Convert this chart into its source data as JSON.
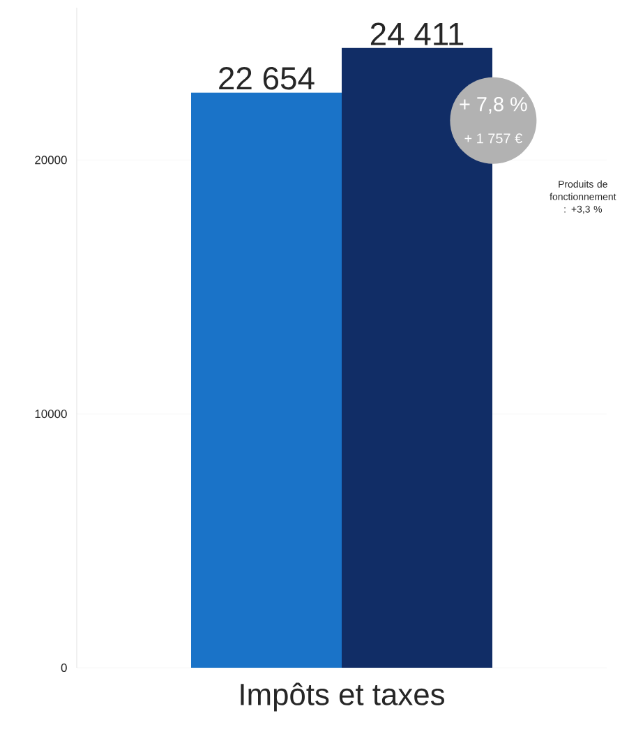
{
  "chart_data": {
    "type": "bar",
    "categories": [
      "Impôts et taxes"
    ],
    "series": [
      {
        "color": "#1a73c8",
        "values": [
          22654
        ],
        "value_labels": [
          "22 654"
        ]
      },
      {
        "color": "#112d66",
        "values": [
          24411
        ],
        "value_labels": [
          "24 411"
        ]
      }
    ],
    "ylim": [
      0,
      26000
    ],
    "yticks": [
      0,
      10000,
      20000
    ],
    "grid": "y",
    "annotations": [
      "+ 7,8 %",
      "+ 1 757 €",
      "Produits de fonctionnement : +3,3 %"
    ]
  }
}
